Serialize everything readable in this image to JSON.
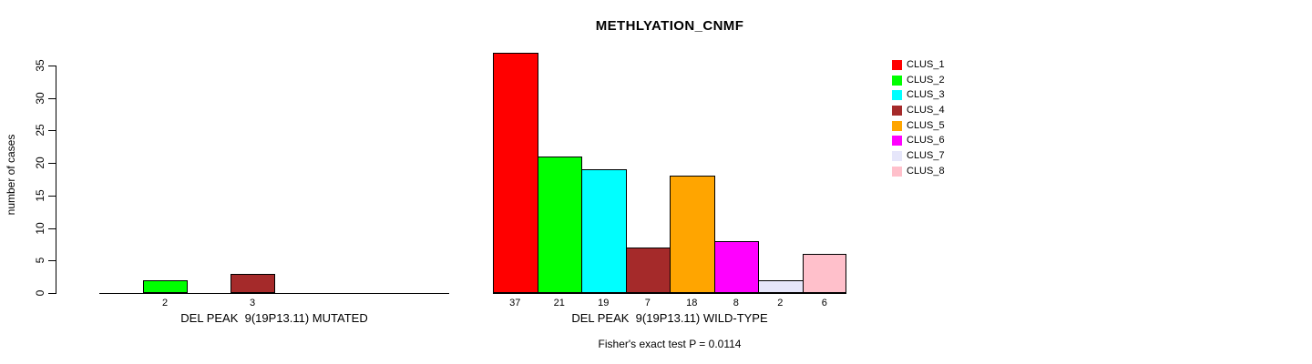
{
  "title": "METHLYATION_CNMF",
  "y_axis": {
    "label": "number of cases",
    "ticks": [
      0,
      5,
      10,
      15,
      20,
      25,
      30,
      35
    ],
    "max": 35
  },
  "legend": {
    "position": "right",
    "entries": [
      {
        "label": "CLUS_1",
        "color": "#FF0000"
      },
      {
        "label": "CLUS_2",
        "color": "#00FF00"
      },
      {
        "label": "CLUS_3",
        "color": "#00FFFF"
      },
      {
        "label": "CLUS_4",
        "color": "#A52A2A"
      },
      {
        "label": "CLUS_5",
        "color": "#FFA500"
      },
      {
        "label": "CLUS_6",
        "color": "#FF00FF"
      },
      {
        "label": "CLUS_7",
        "color": "#E6E6FA"
      },
      {
        "label": "CLUS_8",
        "color": "#FFC0CB"
      }
    ]
  },
  "footer": {
    "fisher_text": "Fisher's exact test P = 0.0114"
  },
  "chart_data": [
    {
      "type": "bar",
      "panel": "mutated",
      "title": "METHLYATION_CNMF",
      "xlabel": "DEL PEAK  9(19P13.11) MUTATED",
      "ylabel": "number of cases",
      "categories": [
        "CLUS_1",
        "CLUS_2",
        "CLUS_3",
        "CLUS_4",
        "CLUS_5",
        "CLUS_6",
        "CLUS_7",
        "CLUS_8"
      ],
      "values": [
        0,
        2,
        0,
        3,
        0,
        0,
        0,
        0
      ],
      "bar_labels": [
        "",
        "2",
        "",
        "3",
        "",
        "",
        "",
        ""
      ],
      "colors": [
        "#FF0000",
        "#00FF00",
        "#00FFFF",
        "#A52A2A",
        "#FFA500",
        "#FF00FF",
        "#E6E6FA",
        "#FFC0CB"
      ],
      "ylim": [
        0,
        35
      ],
      "yticks": [
        0,
        5,
        10,
        15,
        20,
        25,
        30,
        35
      ],
      "grid": false,
      "legend_position": "right"
    },
    {
      "type": "bar",
      "panel": "wild-type",
      "xlabel": "DEL PEAK  9(19P13.11) WILD-TYPE",
      "ylabel": "number of cases",
      "categories": [
        "CLUS_1",
        "CLUS_2",
        "CLUS_3",
        "CLUS_4",
        "CLUS_5",
        "CLUS_6",
        "CLUS_7",
        "CLUS_8"
      ],
      "values": [
        37,
        21,
        19,
        7,
        18,
        8,
        2,
        6
      ],
      "bar_labels": [
        "37",
        "21",
        "19",
        "7",
        "18",
        "8",
        "2",
        "6"
      ],
      "colors": [
        "#FF0000",
        "#00FF00",
        "#00FFFF",
        "#A52A2A",
        "#FFA500",
        "#FF00FF",
        "#E6E6FA",
        "#FFC0CB"
      ],
      "ylim": [
        0,
        35
      ],
      "yticks": [
        0,
        5,
        10,
        15,
        20,
        25,
        30,
        35
      ],
      "grid": false,
      "legend_position": "right"
    }
  ]
}
